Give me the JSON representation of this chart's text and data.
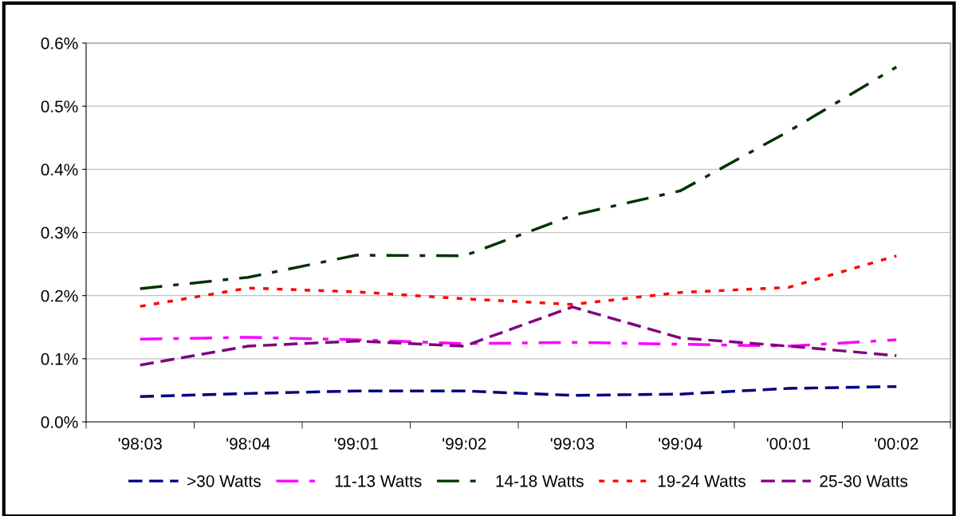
{
  "chart_data": {
    "type": "line",
    "categories": [
      "'98:03",
      "'98:04",
      "'99:01",
      "'99:02",
      "'99:03",
      "'99:04",
      "'00:01",
      "'00:02"
    ],
    "series": [
      {
        "name": ">30 Watts",
        "color": "#000080",
        "line_style": "dashed",
        "values": [
          0.04,
          0.045,
          0.049,
          0.049,
          0.042,
          0.044,
          0.053,
          0.056
        ]
      },
      {
        "name": "11-13 Watts",
        "color": "#ff00ff",
        "line_style": "dashdot",
        "values": [
          0.131,
          0.134,
          0.13,
          0.124,
          0.126,
          0.123,
          0.12,
          0.13
        ]
      },
      {
        "name": "14-18 Watts",
        "color": "#003300",
        "line_style": "dashdot",
        "values": [
          0.211,
          0.229,
          0.264,
          0.263,
          0.327,
          0.366,
          0.46,
          0.562
        ]
      },
      {
        "name": "19-24 Watts",
        "color": "#ff0000",
        "line_style": "dotted",
        "values": [
          0.183,
          0.212,
          0.206,
          0.195,
          0.186,
          0.205,
          0.213,
          0.263
        ]
      },
      {
        "name": "25-30 Watts",
        "color": "#800080",
        "line_style": "dashed",
        "values": [
          0.09,
          0.12,
          0.128,
          0.12,
          0.182,
          0.133,
          0.12,
          0.105
        ]
      }
    ],
    "ylim": [
      0,
      0.6
    ],
    "yticks": [
      {
        "value": 0,
        "label": "0.0%"
      },
      {
        "value": 0.1,
        "label": "0.1%"
      },
      {
        "value": 0.2,
        "label": "0.2%"
      },
      {
        "value": 0.3,
        "label": "0.3%"
      },
      {
        "value": 0.4,
        "label": "0.4%"
      },
      {
        "value": 0.5,
        "label": "0.5%"
      },
      {
        "value": 0.6,
        "label": "0.6%"
      }
    ],
    "grid": "y",
    "legend": "bottom",
    "marker": "none"
  }
}
